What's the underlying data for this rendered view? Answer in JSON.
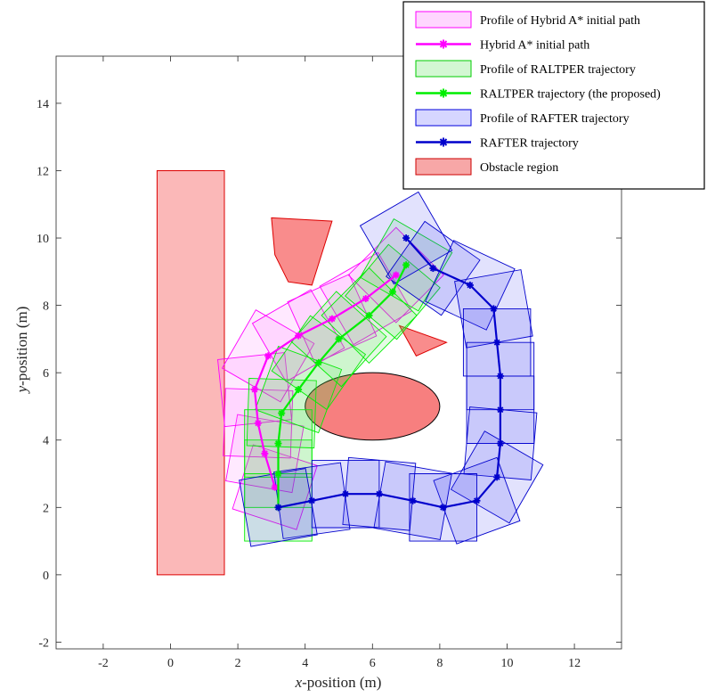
{
  "chart_data": {
    "type": "scatter",
    "xlabel_var": "x",
    "xlabel_rest": "-position (m)",
    "ylabel_var": "y",
    "ylabel_rest": "-position (m)",
    "xlim": [
      -3.4,
      13.4
    ],
    "ylim": [
      -2.2,
      15.4
    ],
    "xticks": [
      -2,
      0,
      2,
      4,
      6,
      8,
      10,
      12
    ],
    "yticks": [
      -2,
      0,
      2,
      4,
      6,
      8,
      10,
      12,
      14
    ],
    "grid": false,
    "legend_placement": "top-right",
    "legend": [
      {
        "label": "Profile of Hybrid A* initial path",
        "kind": "patch",
        "fill": "#ffd6ff",
        "stroke": "#ff00ff"
      },
      {
        "label": "Hybrid A* initial path",
        "kind": "line",
        "color": "#ff00ff"
      },
      {
        "label": "Profile of RALTPER trajectory",
        "kind": "patch",
        "fill": "#d3f7d3",
        "stroke": "#00cc00"
      },
      {
        "label": "RALTPER trajectory (the proposed)",
        "kind": "line",
        "color": "#00ee00"
      },
      {
        "label": "Profile of RAFTER trajectory",
        "kind": "patch",
        "fill": "#d6d6ff",
        "stroke": "#0000dd"
      },
      {
        "label": "RAFTER trajectory",
        "kind": "line",
        "color": "#0000cc"
      },
      {
        "label": "Obstacle region",
        "kind": "patch",
        "fill": "#f7a7a7",
        "stroke": "#cc0000"
      }
    ],
    "obstacles": [
      {
        "shape": "polygon",
        "points": [
          [
            -0.4,
            0
          ],
          [
            1.6,
            0
          ],
          [
            1.6,
            12
          ],
          [
            -0.4,
            12
          ]
        ]
      },
      {
        "shape": "polygon",
        "points": [
          [
            3.0,
            10.6
          ],
          [
            4.8,
            10.5
          ],
          [
            4.2,
            8.6
          ],
          [
            3.5,
            8.7
          ],
          [
            3.1,
            9.5
          ]
        ]
      },
      {
        "shape": "polygon",
        "points": [
          [
            6.8,
            7.4
          ],
          [
            8.2,
            6.9
          ],
          [
            7.3,
            6.5
          ]
        ]
      },
      {
        "shape": "ellipse",
        "center": [
          6.0,
          5.0
        ],
        "rx": 2.0,
        "ry": 1.0
      }
    ],
    "vehicle_box": {
      "length": 2.0,
      "width": 2.0
    },
    "series": [
      {
        "name": "Hybrid A* initial path",
        "color": "#ff00ff",
        "patch_fill": "#ff66ff",
        "x": [
          3.1,
          2.8,
          2.6,
          2.5,
          2.9,
          3.8,
          4.8,
          5.8,
          6.7
        ],
        "y": [
          2.6,
          3.6,
          4.5,
          5.5,
          6.5,
          7.1,
          7.6,
          8.2,
          8.9
        ],
        "heading_deg": [
          72,
          80,
          88,
          96,
          60,
          30,
          24,
          30,
          45
        ]
      },
      {
        "name": "RALTPER trajectory (the proposed)",
        "color": "#00ee00",
        "patch_fill": "#44dd44",
        "x": [
          3.2,
          3.2,
          3.2,
          3.3,
          3.8,
          4.4,
          5.0,
          5.9,
          6.6,
          7.0
        ],
        "y": [
          2.0,
          3.0,
          3.9,
          4.8,
          5.5,
          6.3,
          7.0,
          7.7,
          8.4,
          9.2
        ],
        "heading_deg": [
          90,
          90,
          90,
          88,
          70,
          55,
          48,
          45,
          50,
          60
        ]
      },
      {
        "name": "RAFTER trajectory",
        "color": "#0000cc",
        "patch_fill": "#3333ee",
        "x": [
          7.0,
          7.8,
          8.9,
          9.6,
          9.7,
          9.8,
          9.8,
          9.8,
          9.7,
          9.1,
          8.1,
          7.2,
          6.2,
          5.2,
          4.2,
          3.2
        ],
        "y": [
          10.0,
          9.1,
          8.6,
          7.9,
          6.9,
          5.9,
          4.9,
          3.9,
          2.9,
          2.2,
          2.0,
          2.2,
          2.4,
          2.4,
          2.2,
          2.0
        ],
        "heading_deg": [
          -60,
          -35,
          -25,
          -80,
          -90,
          -90,
          -90,
          -95,
          -120,
          -160,
          180,
          170,
          175,
          180,
          188,
          190
        ]
      }
    ]
  }
}
